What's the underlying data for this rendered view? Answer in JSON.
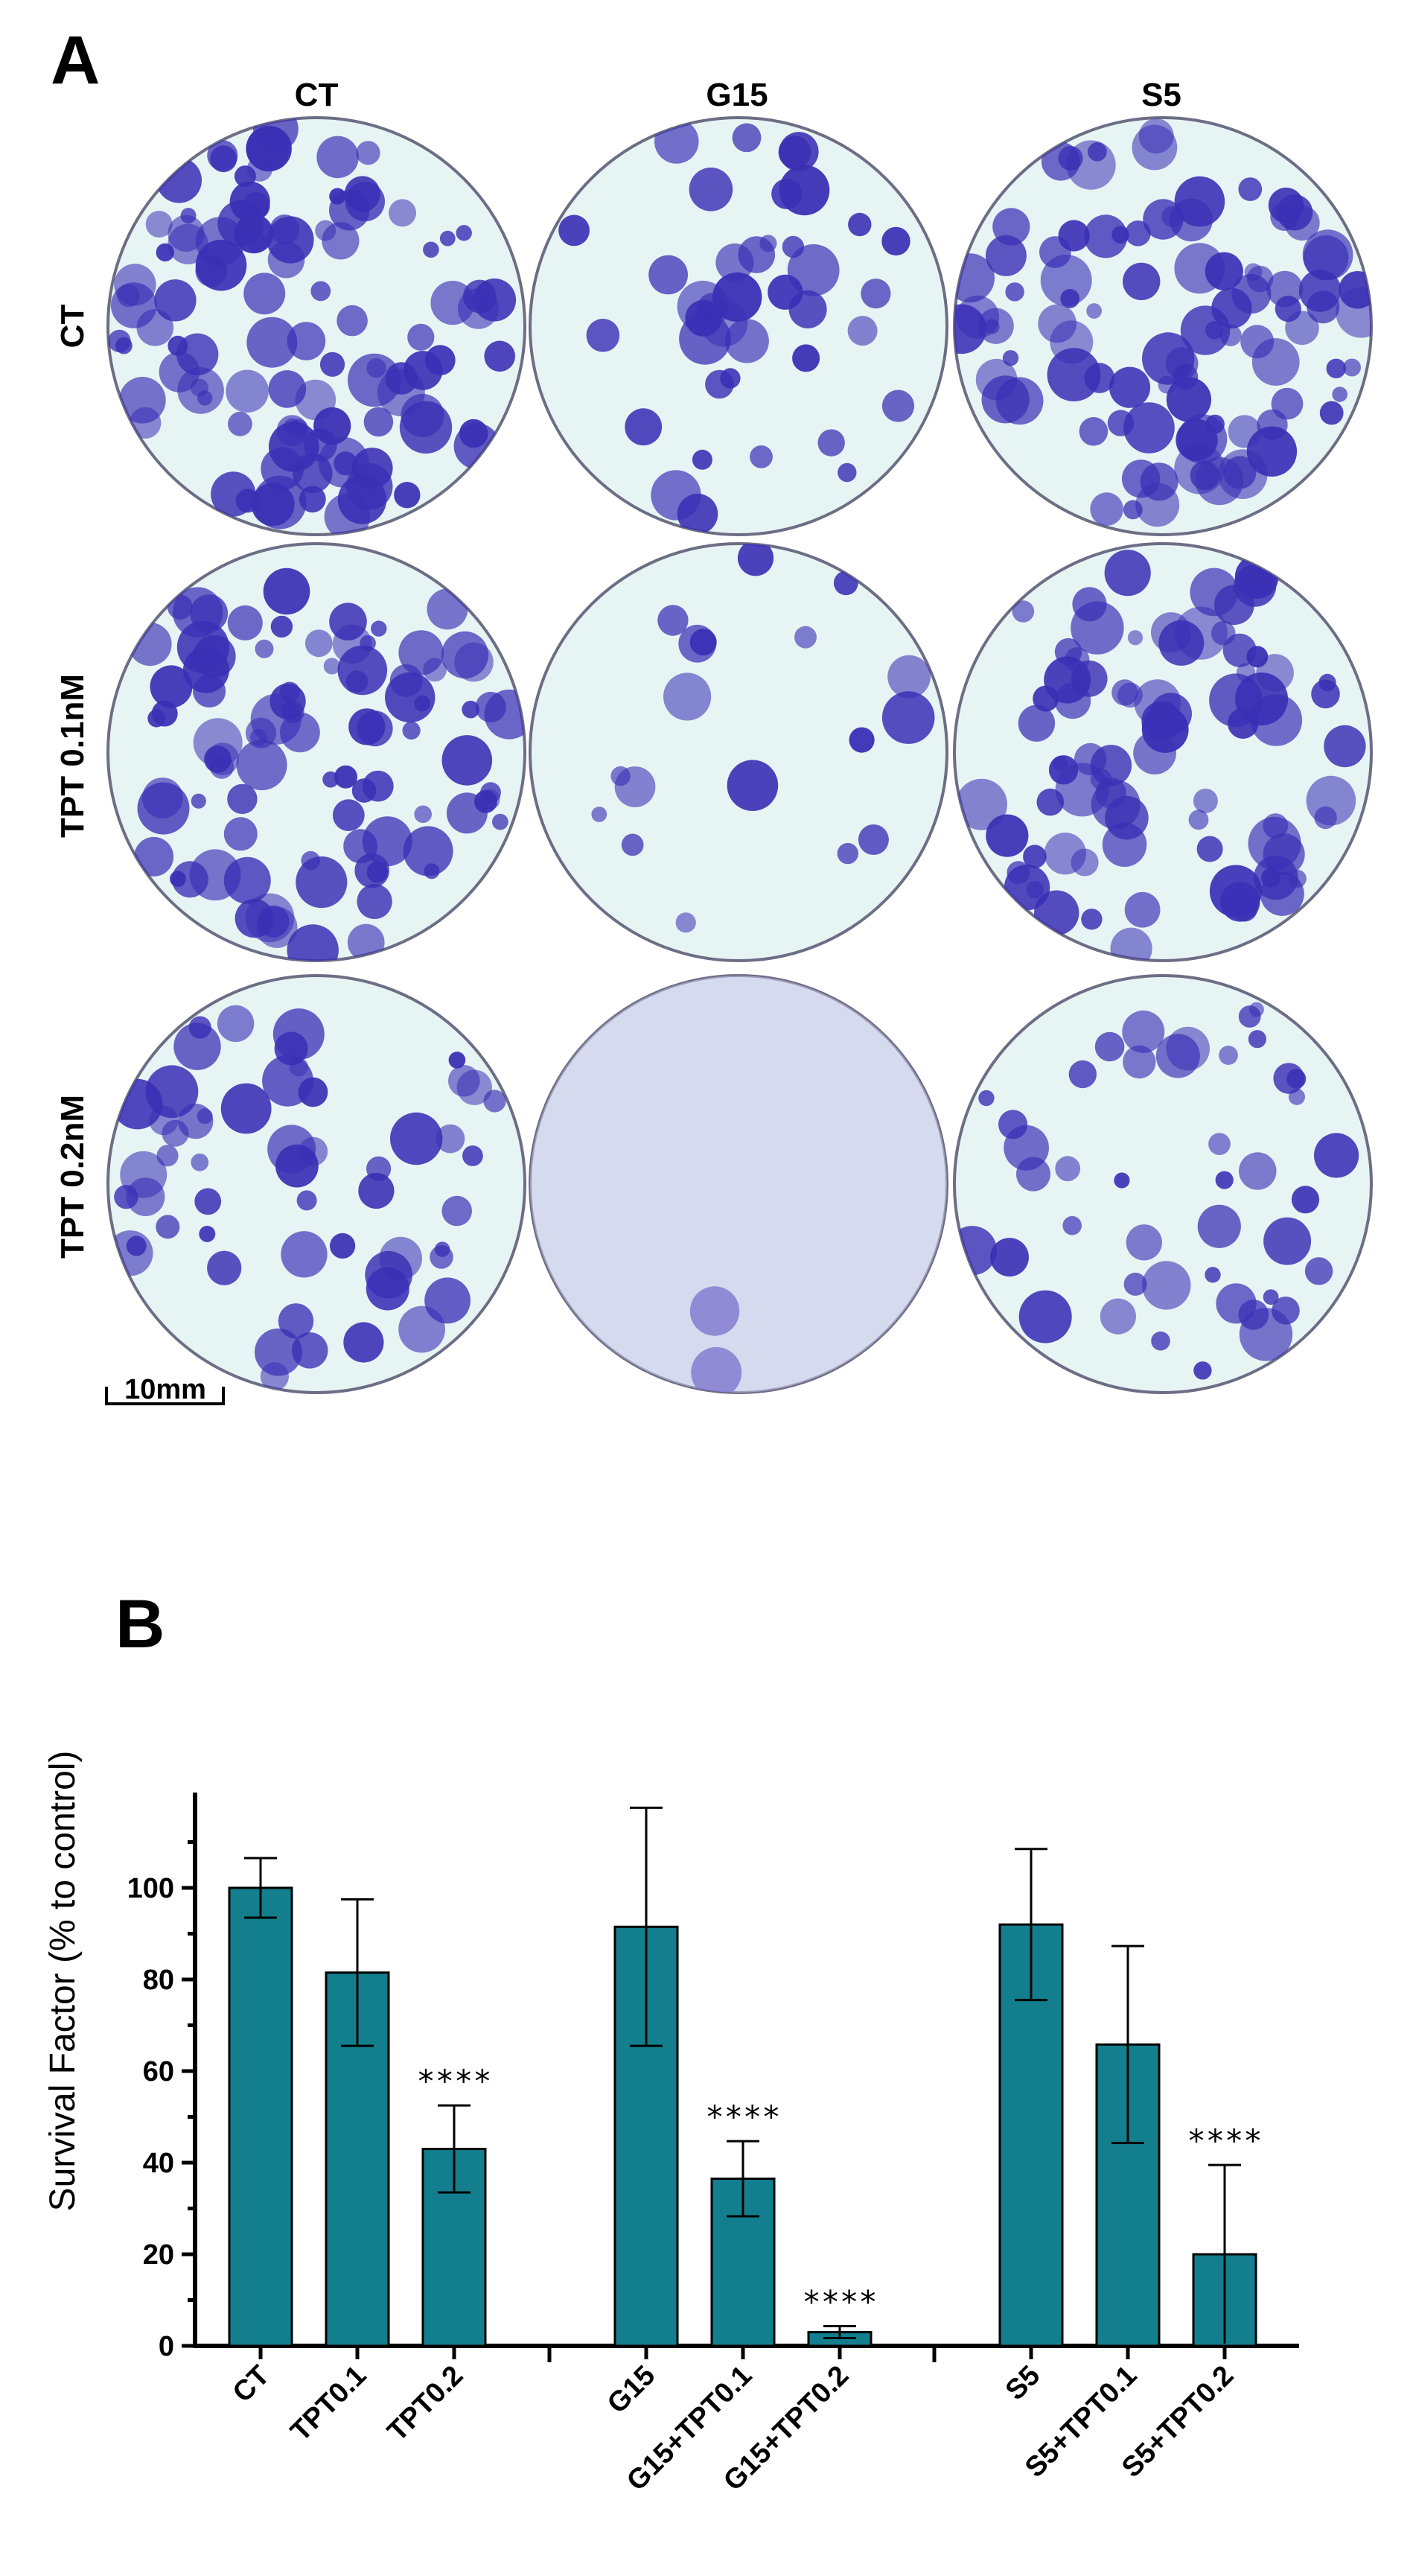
{
  "panel_a": {
    "letter": "A",
    "col_headers": [
      "CT",
      "G15",
      "S5"
    ],
    "row_headers": [
      "CT",
      "TPT 0.1nM",
      "TPT 0.2nM"
    ],
    "scale_bar": "10mm",
    "stain_color": "#3a2fb5",
    "plate_bg": "#e6f5f4",
    "density": [
      [
        0.55,
        0.22,
        0.5
      ],
      [
        0.48,
        0.1,
        0.42
      ],
      [
        0.3,
        0.01,
        0.24
      ]
    ]
  },
  "panel_b": {
    "letter": "B"
  },
  "chart_data": {
    "type": "bar",
    "ylabel": "Survival Factor (% to control)",
    "xlabel": "",
    "ylim": [
      0,
      120
    ],
    "yticks": [
      0,
      20,
      40,
      60,
      80,
      100
    ],
    "bar_color": "#137f8e",
    "groups": [
      {
        "categories": [
          "CT",
          "TPT0.1",
          "TPT0.2"
        ],
        "values": [
          100,
          81.5,
          43
        ],
        "error": [
          6.5,
          16,
          9.5
        ],
        "significance": [
          "",
          "",
          "****"
        ]
      },
      {
        "categories": [
          "G15",
          "G15+TPT0.1",
          "G15+TPT0.2"
        ],
        "values": [
          91.5,
          36.5,
          3
        ],
        "error": [
          26,
          8.2,
          1.3
        ],
        "significance": [
          "",
          "****",
          "****"
        ]
      },
      {
        "categories": [
          "S5",
          "S5+TPT0.1",
          "S5+TPT0.2"
        ],
        "values": [
          92,
          65.8,
          20
        ],
        "error": [
          16.5,
          21.5,
          19.5
        ],
        "significance": [
          "",
          "",
          "****"
        ]
      }
    ]
  }
}
